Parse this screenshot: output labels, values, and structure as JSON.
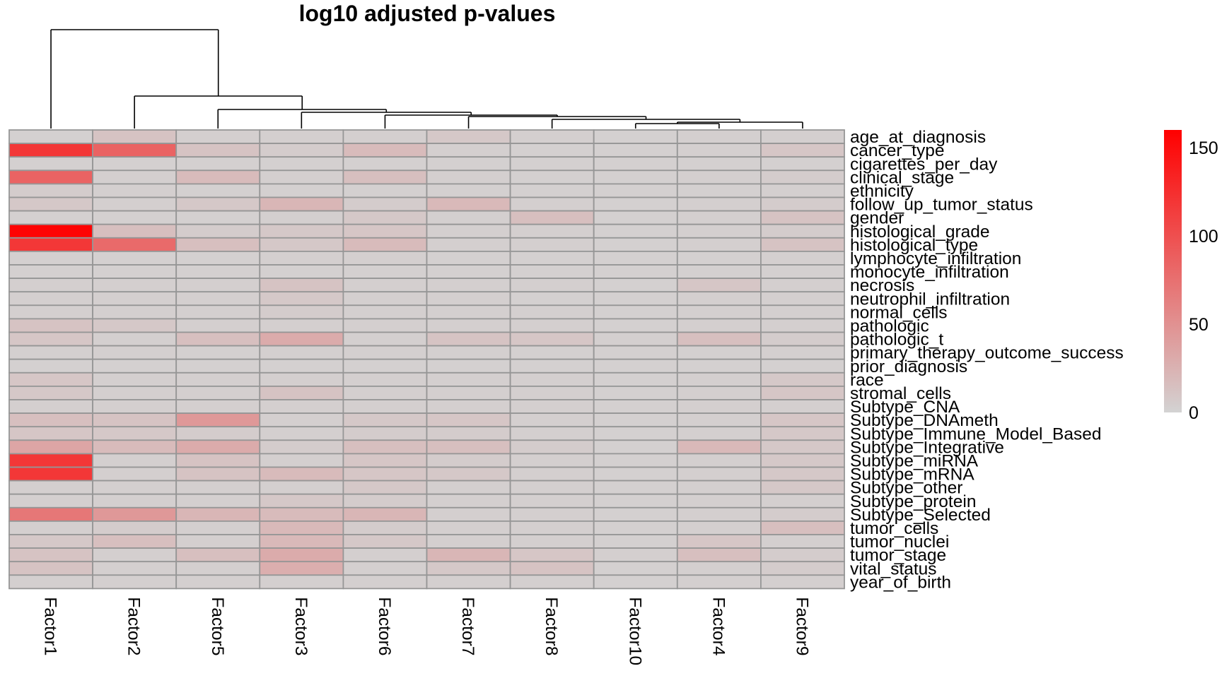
{
  "chart_data": {
    "type": "heatmap",
    "title": "log10 adjusted p-values",
    "columns": [
      "Factor1",
      "Factor2",
      "Factor5",
      "Factor3",
      "Factor6",
      "Factor7",
      "Factor8",
      "Factor10",
      "Factor4",
      "Factor9"
    ],
    "rows": [
      "age_at_diagnosis",
      "cancer_type",
      "cigarettes_per_day",
      "clinical_stage",
      "ethnicity",
      "follow_up_tumor_status",
      "gender",
      "histological_grade",
      "histological_type",
      "lymphocyte_infiltration",
      "monocyte_infiltration",
      "necrosis",
      "neutrophil_infiltration",
      "normal_cells",
      "pathologic",
      "pathologic_t",
      "primary_therapy_outcome_success",
      "prior_diagnosis",
      "race",
      "stromal_cells",
      "Subtype_CNA",
      "Subtype_DNAmeth",
      "Subtype_Immune_Model_Based",
      "Subtype_Integrative",
      "Subtype_miRNA",
      "Subtype_mRNA",
      "Subtype_other",
      "Subtype_protein",
      "Subtype_Selected",
      "tumor_cells",
      "tumor_nuclei",
      "tumor_stage",
      "vital_status",
      "year_of_birth"
    ],
    "values": [
      [
        2,
        12,
        3,
        3,
        3,
        8,
        3,
        2,
        3,
        3
      ],
      [
        118,
        85,
        12,
        5,
        18,
        3,
        2,
        2,
        3,
        10
      ],
      [
        2,
        2,
        2,
        2,
        2,
        2,
        2,
        2,
        2,
        2
      ],
      [
        85,
        3,
        18,
        3,
        15,
        3,
        2,
        2,
        3,
        5
      ],
      [
        5,
        3,
        2,
        2,
        2,
        2,
        2,
        2,
        2,
        3
      ],
      [
        8,
        3,
        8,
        22,
        5,
        20,
        3,
        2,
        3,
        5
      ],
      [
        2,
        2,
        2,
        3,
        8,
        3,
        15,
        2,
        3,
        12
      ],
      [
        158,
        15,
        5,
        8,
        10,
        3,
        3,
        2,
        3,
        5
      ],
      [
        118,
        80,
        15,
        8,
        18,
        3,
        3,
        2,
        3,
        12
      ],
      [
        2,
        2,
        2,
        3,
        3,
        2,
        2,
        2,
        2,
        3
      ],
      [
        2,
        2,
        2,
        2,
        2,
        2,
        2,
        2,
        2,
        2
      ],
      [
        3,
        3,
        3,
        12,
        3,
        3,
        3,
        2,
        10,
        3
      ],
      [
        3,
        3,
        3,
        8,
        3,
        3,
        2,
        2,
        3,
        3
      ],
      [
        3,
        3,
        3,
        5,
        3,
        3,
        3,
        2,
        3,
        3
      ],
      [
        12,
        8,
        3,
        3,
        3,
        3,
        3,
        2,
        3,
        3
      ],
      [
        10,
        3,
        15,
        30,
        3,
        12,
        10,
        3,
        15,
        5
      ],
      [
        3,
        3,
        2,
        3,
        3,
        3,
        2,
        2,
        2,
        3
      ],
      [
        2,
        2,
        2,
        2,
        2,
        2,
        2,
        2,
        2,
        2
      ],
      [
        10,
        3,
        3,
        3,
        3,
        3,
        3,
        2,
        3,
        8
      ],
      [
        8,
        3,
        3,
        12,
        3,
        3,
        3,
        2,
        3,
        10
      ],
      [
        3,
        3,
        3,
        3,
        3,
        3,
        3,
        2,
        3,
        3
      ],
      [
        15,
        12,
        45,
        3,
        8,
        10,
        3,
        2,
        3,
        10
      ],
      [
        10,
        8,
        5,
        3,
        5,
        5,
        3,
        2,
        3,
        8
      ],
      [
        35,
        18,
        30,
        5,
        15,
        15,
        5,
        2,
        20,
        8
      ],
      [
        118,
        3,
        12,
        3,
        10,
        5,
        3,
        2,
        3,
        8
      ],
      [
        118,
        3,
        12,
        18,
        10,
        8,
        3,
        2,
        3,
        8
      ],
      [
        3,
        3,
        3,
        3,
        8,
        3,
        3,
        2,
        3,
        8
      ],
      [
        3,
        3,
        3,
        8,
        5,
        3,
        3,
        2,
        3,
        3
      ],
      [
        70,
        45,
        22,
        18,
        22,
        3,
        3,
        2,
        3,
        5
      ],
      [
        3,
        5,
        3,
        20,
        5,
        3,
        3,
        2,
        3,
        15
      ],
      [
        8,
        15,
        3,
        20,
        8,
        3,
        3,
        2,
        10,
        3
      ],
      [
        12,
        3,
        15,
        30,
        3,
        22,
        10,
        3,
        15,
        5
      ],
      [
        12,
        3,
        3,
        28,
        3,
        8,
        12,
        2,
        3,
        5
      ],
      [
        3,
        3,
        3,
        3,
        3,
        3,
        3,
        2,
        3,
        3
      ]
    ],
    "color_scale": {
      "min_color": "#d3d3d3",
      "max_color": "#ff0000",
      "min": 0,
      "max": 160
    },
    "legend": {
      "ticks": [
        0,
        50,
        100,
        150
      ],
      "placement": "right"
    },
    "column_dendrogram": true,
    "grid_color": "#969696"
  }
}
